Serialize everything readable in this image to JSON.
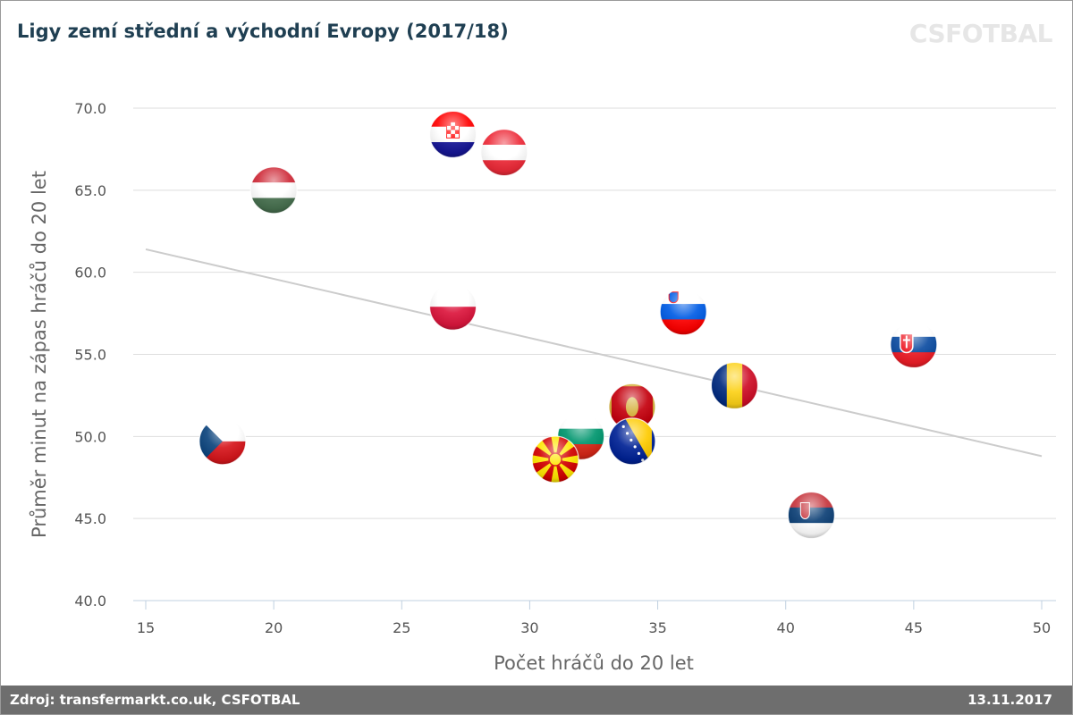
{
  "header": {
    "title": "Ligy zemí střední a východní Evropy (2017/18)",
    "brand": "CSFOTBAL"
  },
  "footer": {
    "source": "Zdroj: transfermarkt.co.uk, CSFOTBAL",
    "date": "13.11.2017"
  },
  "chart_data": {
    "type": "scatter",
    "xlabel": "Počet hráčů do 20 let",
    "ylabel": "Průměr minut na zápas hráčů do 20 let",
    "xlim": [
      15,
      50
    ],
    "ylim": [
      40,
      70
    ],
    "xticks": [
      15,
      20,
      25,
      30,
      35,
      40,
      45,
      50
    ],
    "yticks": [
      40,
      45,
      50,
      55,
      60,
      65,
      70
    ],
    "xtick_labels": [
      "15",
      "20",
      "25",
      "30",
      "35",
      "40",
      "45",
      "50"
    ],
    "ytick_labels": [
      "40.0",
      "45.0",
      "50.0",
      "55.0",
      "60.0",
      "65.0",
      "70.0"
    ],
    "grid": "horizontal",
    "marker": "country-flag",
    "trendline": {
      "x": [
        15,
        50
      ],
      "y": [
        61.4,
        48.8
      ],
      "color": "#cccccc"
    },
    "points": [
      {
        "country": "Czech Republic",
        "x": 18,
        "y": 49.7,
        "flag": "czech-republic"
      },
      {
        "country": "Hungary",
        "x": 20,
        "y": 65.0,
        "flag": "hungary"
      },
      {
        "country": "Croatia",
        "x": 27,
        "y": 68.4,
        "flag": "croatia"
      },
      {
        "country": "Austria",
        "x": 29,
        "y": 67.3,
        "flag": "austria"
      },
      {
        "country": "Poland",
        "x": 27,
        "y": 57.9,
        "flag": "poland"
      },
      {
        "country": "Slovenia",
        "x": 36,
        "y": 57.6,
        "flag": "slovenia"
      },
      {
        "country": "Slovakia",
        "x": 45,
        "y": 55.6,
        "flag": "slovakia"
      },
      {
        "country": "Romania",
        "x": 38,
        "y": 53.1,
        "flag": "romania"
      },
      {
        "country": "Montenegro",
        "x": 34,
        "y": 51.8,
        "flag": "montenegro"
      },
      {
        "country": "Bulgaria",
        "x": 32,
        "y": 50.0,
        "flag": "bulgaria"
      },
      {
        "country": "Bosnia and Herzegovina",
        "x": 34,
        "y": 49.7,
        "flag": "bosnia-and-herzegovina"
      },
      {
        "country": "North Macedonia",
        "x": 31,
        "y": 48.6,
        "flag": "north-macedonia"
      },
      {
        "country": "Serbia",
        "x": 41,
        "y": 45.2,
        "flag": "serbia"
      }
    ]
  }
}
